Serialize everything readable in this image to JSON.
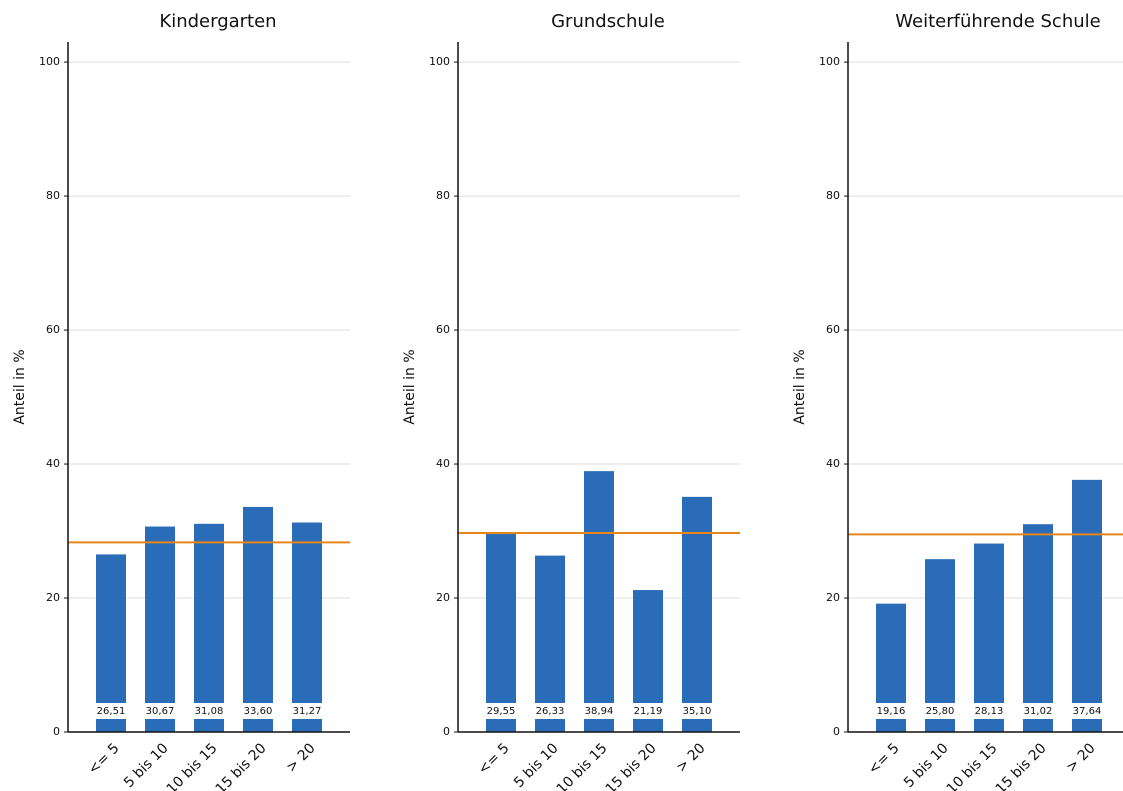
{
  "chart_data": [
    {
      "type": "bar",
      "title": "Kindergarten",
      "y_label": "Anteil in %",
      "categories": [
        "<= 5",
        "5 bis 10",
        "10 bis 15",
        "15 bis 20",
        "> 20"
      ],
      "values": [
        26.51,
        30.67,
        31.08,
        33.6,
        31.27
      ],
      "value_labels": [
        "26,51",
        "30,67",
        "31,08",
        "33,60",
        "31,27"
      ],
      "color": "#2b6cb8",
      "hline": 28.3,
      "hline_color": "#e8861a",
      "ylim": [
        0,
        103
      ],
      "yticks": [
        0,
        20,
        40,
        60,
        80,
        100
      ],
      "grid": true
    },
    {
      "type": "bar",
      "title": "Grundschule",
      "y_label": "Anteil in %",
      "categories": [
        "<= 5",
        "5 bis 10",
        "10 bis 15",
        "15 bis 20",
        "> 20"
      ],
      "values": [
        29.55,
        26.33,
        38.94,
        21.19,
        35.1
      ],
      "value_labels": [
        "29,55",
        "26,33",
        "38,94",
        "21,19",
        "35,10"
      ],
      "color": "#2b6cb8",
      "hline": 29.7,
      "hline_color": "#e8861a",
      "ylim": [
        0,
        103
      ],
      "yticks": [
        0,
        20,
        40,
        60,
        80,
        100
      ],
      "grid": true
    },
    {
      "type": "bar",
      "title": "Weiterführende Schule",
      "y_label": "Anteil in %",
      "categories": [
        "<= 5",
        "5 bis 10",
        "10 bis 15",
        "15 bis 20",
        "> 20"
      ],
      "values": [
        19.16,
        25.8,
        28.13,
        31.02,
        37.64
      ],
      "value_labels": [
        "19,16",
        "25,80",
        "28,13",
        "31,02",
        "37,64"
      ],
      "color": "#2b6cb8",
      "hline": 29.5,
      "hline_color": "#e8861a",
      "ylim": [
        0,
        103
      ],
      "yticks": [
        0,
        20,
        40,
        60,
        80,
        100
      ],
      "grid": true
    }
  ]
}
